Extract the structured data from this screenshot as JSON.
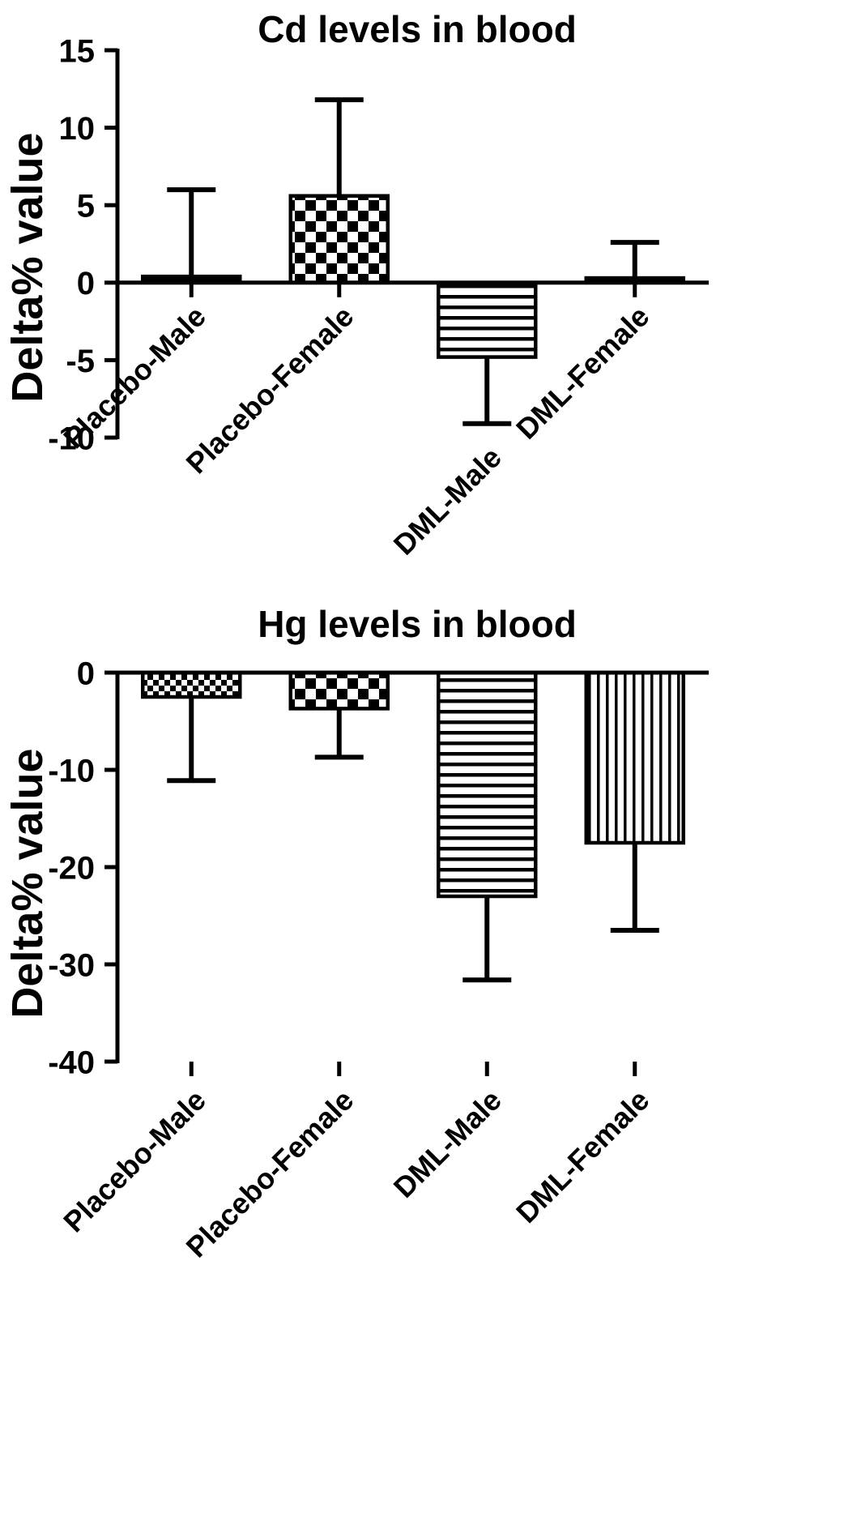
{
  "figure": {
    "background": "#ffffff",
    "ink_color": "#000000"
  },
  "chart_data": [
    {
      "type": "bar",
      "title": "Cd levels in blood",
      "ylabel": "Delta% value",
      "ylim": [
        -10,
        15
      ],
      "yticks": [
        15,
        10,
        5,
        0,
        -5,
        -10
      ],
      "categories": [
        "Placebo-Male",
        "Placebo-Female",
        "DML-Male",
        "DML-Female"
      ],
      "values": [
        0.4,
        5.6,
        -4.8,
        0.3
      ],
      "errors": [
        5.6,
        6.2,
        4.3,
        2.3
      ],
      "error_directions": [
        "up",
        "up",
        "down",
        "up"
      ],
      "bar_patterns": [
        "solid",
        "checker",
        "hlines",
        "solid"
      ],
      "bar_color": "#000000",
      "grid": false,
      "legend": "none"
    },
    {
      "type": "bar",
      "title": "Hg levels in blood",
      "ylabel": "Delta% value",
      "ylim": [
        -40,
        0
      ],
      "yticks": [
        0,
        -10,
        -20,
        -30,
        -40
      ],
      "categories": [
        "Placebo-Male",
        "Placebo-Female",
        "DML-Male",
        "DML-Female"
      ],
      "values": [
        -2.5,
        -3.7,
        -23,
        -17.5
      ],
      "errors": [
        8.6,
        5.0,
        8.6,
        9.0
      ],
      "error_directions": [
        "down",
        "down",
        "down",
        "down"
      ],
      "bar_patterns": [
        "checker-fine",
        "checker",
        "hlines",
        "vlines"
      ],
      "bar_color": "#000000",
      "grid": false,
      "legend": "none"
    }
  ]
}
